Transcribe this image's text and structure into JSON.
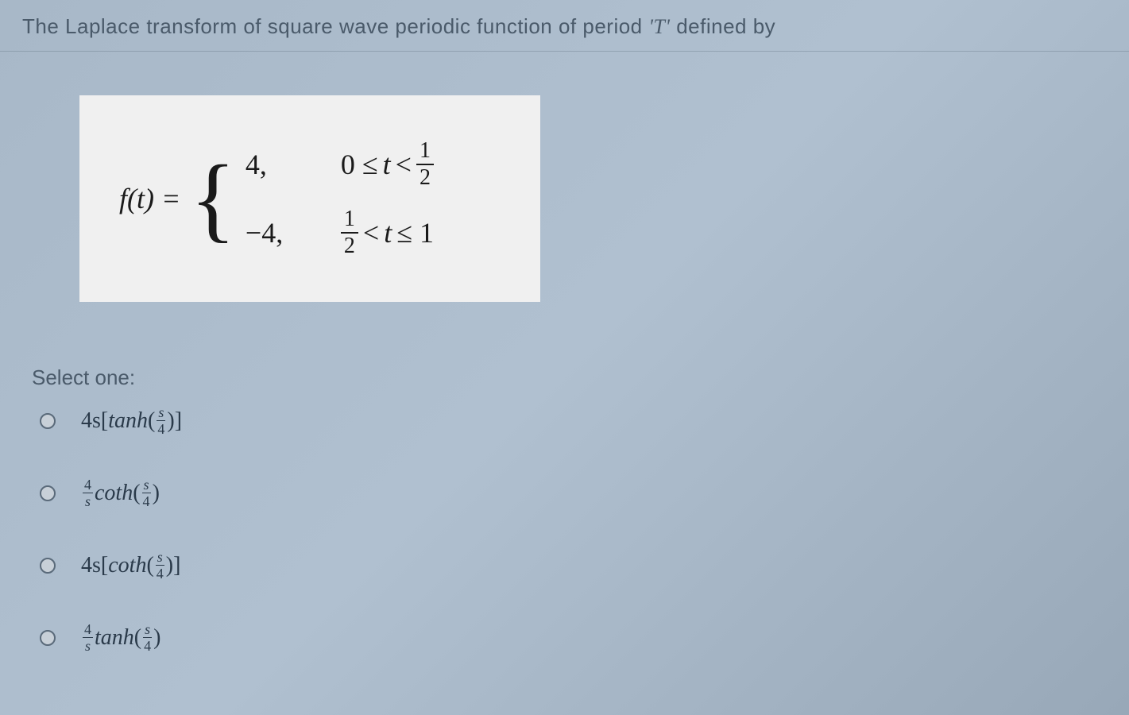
{
  "question": {
    "prefix": "The Laplace transform of  square wave periodic function of period ",
    "period_symbol": "'T'",
    "suffix": " defined by"
  },
  "equation": {
    "lhs": "f(t) =",
    "case1_value": "4,",
    "case1_cond_lhs": "0 ≤ ",
    "case1_cond_var": "t",
    "case1_cond_op": " < ",
    "case1_frac_num": "1",
    "case1_frac_den": "2",
    "case2_value": "−4,",
    "case2_frac_num": "1",
    "case2_frac_den": "2",
    "case2_cond_mid": " < ",
    "case2_cond_var": "t",
    "case2_cond_end": " ≤ 1"
  },
  "select_label": "Select one:",
  "options": {
    "a": {
      "coef": "4s",
      "lbracket": "[",
      "func": "tanh",
      "lparen": "(",
      "arg_num": "s",
      "arg_den": "4",
      "rparen": ")",
      "rbracket": "]"
    },
    "b": {
      "coef_num": "4",
      "coef_den": "s",
      "func": "coth",
      "lparen": "(",
      "arg_num": "s",
      "arg_den": "4",
      "rparen": ")"
    },
    "c": {
      "coef": "4s",
      "lbracket": "[",
      "func": "coth",
      "lparen": "(",
      "arg_num": "s",
      "arg_den": "4",
      "rparen": ")",
      "rbracket": "]"
    },
    "d": {
      "coef_num": "4",
      "coef_den": "s",
      "func": "tanh",
      "lparen": "(",
      "arg_num": "s",
      "arg_den": "4",
      "rparen": ")"
    }
  },
  "colors": {
    "bg_gradient_start": "#a8b8c8",
    "bg_gradient_end": "#98a8b8",
    "text_muted": "#4a5a6a",
    "equation_bg": "#f0f0f0",
    "equation_text": "#1a1a1a",
    "option_text": "#2a3a4a",
    "radio_border": "#5a6a7a"
  }
}
